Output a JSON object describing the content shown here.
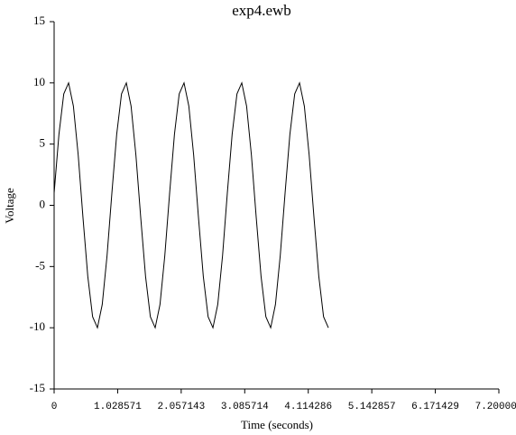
{
  "chart_data": {
    "type": "line",
    "title": "exp4.ewb",
    "x_label": "Time (seconds)",
    "y_label": "Voltage",
    "x": [
      0,
      0.078,
      0.156,
      0.234,
      0.312,
      0.39,
      0.467,
      0.545,
      0.623,
      0.701,
      0.779,
      0.857,
      0.935,
      1.013,
      1.091,
      1.169,
      1.246,
      1.324,
      1.402,
      1.48,
      1.558,
      1.636,
      1.714,
      1.792,
      1.87,
      1.948,
      2.025,
      2.103,
      2.181,
      2.259,
      2.337,
      2.415,
      2.493,
      2.571,
      2.649,
      2.727,
      2.804,
      2.882,
      2.96,
      3.038,
      3.116,
      3.194,
      3.272,
      3.35,
      3.428,
      3.506,
      3.583,
      3.661,
      3.739,
      3.817,
      3.895,
      3.973,
      4.051,
      4.129,
      4.207,
      4.285,
      4.362,
      4.44
    ],
    "series": [
      {
        "color": "#000000",
        "values": [
          1,
          5.8,
          9.1,
          10,
          8.1,
          4.1,
          -1,
          -5.8,
          -9.1,
          -10,
          -8.1,
          -4.1,
          1,
          5.8,
          9.1,
          10,
          8.1,
          4.1,
          -1,
          -5.8,
          -9.1,
          -10,
          -8.1,
          -4.1,
          1,
          5.8,
          9.1,
          10,
          8.1,
          4.1,
          -1,
          -5.8,
          -9.1,
          -10,
          -8.1,
          -4.1,
          1,
          5.8,
          9.1,
          10,
          8.1,
          4.1,
          -1,
          -5.8,
          -9.1,
          -10,
          -8.1,
          -4.1,
          1,
          5.8,
          9.1,
          10,
          8.1,
          4.1,
          -1,
          -5.8,
          -9.1,
          -10
        ]
      }
    ],
    "xlim": [
      0,
      7.2
    ],
    "xticks": [
      0,
      1.028571,
      2.057143,
      3.085714,
      4.114286,
      5.142857,
      6.171429,
      {
        "value": 7.2,
        "label": "7.200000"
      }
    ],
    "ylim": [
      -15,
      15
    ],
    "yticks": [
      15,
      10,
      5,
      0,
      -5,
      -10,
      -15
    ]
  }
}
